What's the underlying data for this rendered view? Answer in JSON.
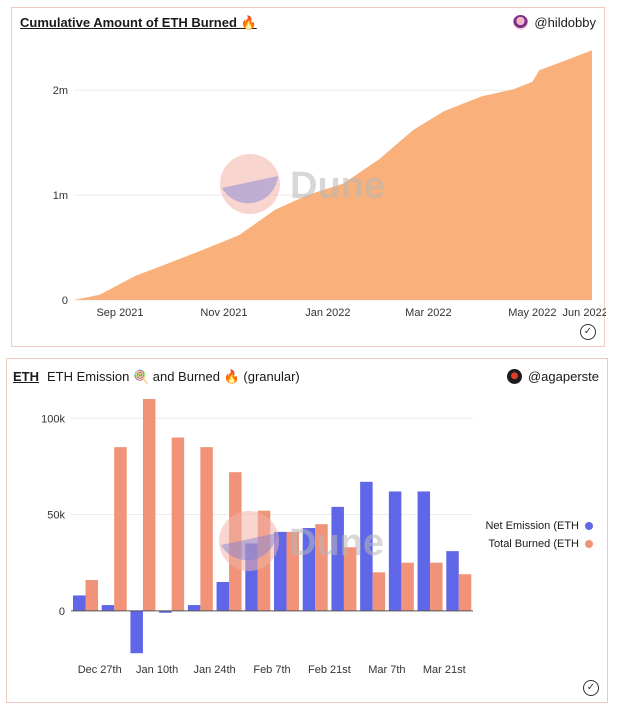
{
  "chart1": {
    "title": "Cumulative Amount of ETH Burned 🔥",
    "author": "@hildobby",
    "watermark": "Dune",
    "chart_data": {
      "type": "area",
      "color": "#f9b07a",
      "x_ticks": [
        "Sep 2021",
        "Nov 2021",
        "Jan 2022",
        "Mar 2022",
        "May 2022",
        "Jun 2022"
      ],
      "y_ticks": [
        "0",
        "1m",
        "2m"
      ],
      "ylim": [
        0,
        2450000
      ],
      "x": [
        "2021-08-05",
        "2021-08-20",
        "2021-09-10",
        "2021-10-01",
        "2021-10-20",
        "2021-11-10",
        "2021-12-01",
        "2021-12-20",
        "2022-01-10",
        "2022-01-31",
        "2022-02-20",
        "2022-03-10",
        "2022-04-01",
        "2022-04-20",
        "2022-05-01",
        "2022-05-05",
        "2022-05-20",
        "2022-06-05"
      ],
      "y": [
        0,
        50000,
        230000,
        360000,
        480000,
        620000,
        860000,
        1000000,
        1110000,
        1340000,
        1620000,
        1800000,
        1940000,
        2010000,
        2080000,
        2190000,
        2280000,
        2380000
      ]
    }
  },
  "chart2": {
    "title_link": "ETH",
    "title": "ETH Emission 🍭 and Burned 🔥 (granular)",
    "author": "@agaperste",
    "watermark": "Dune",
    "chart_data": {
      "type": "bar",
      "x_ticks": [
        "Dec 27th",
        "Jan 10th",
        "Jan 24th",
        "Feb 7th",
        "Feb 21st",
        "Mar 7th",
        "Mar 21st"
      ],
      "y_ticks": [
        "0",
        "50k",
        "100k"
      ],
      "ylim": [
        -25000,
        110000
      ],
      "series": [
        {
          "name": "Net Emission (ETH",
          "color": "#6066e8",
          "values": [
            8000,
            3000,
            -22000,
            -1000,
            3000,
            15000,
            35000,
            41000,
            43000,
            54000,
            67000,
            62000,
            62000,
            31000
          ]
        },
        {
          "name": "Total Burned (ETH",
          "color": "#f09378",
          "values": [
            16000,
            85000,
            110000,
            90000,
            85000,
            72000,
            52000,
            41000,
            45000,
            33000,
            20000,
            25000,
            25000,
            19000
          ]
        }
      ]
    }
  }
}
